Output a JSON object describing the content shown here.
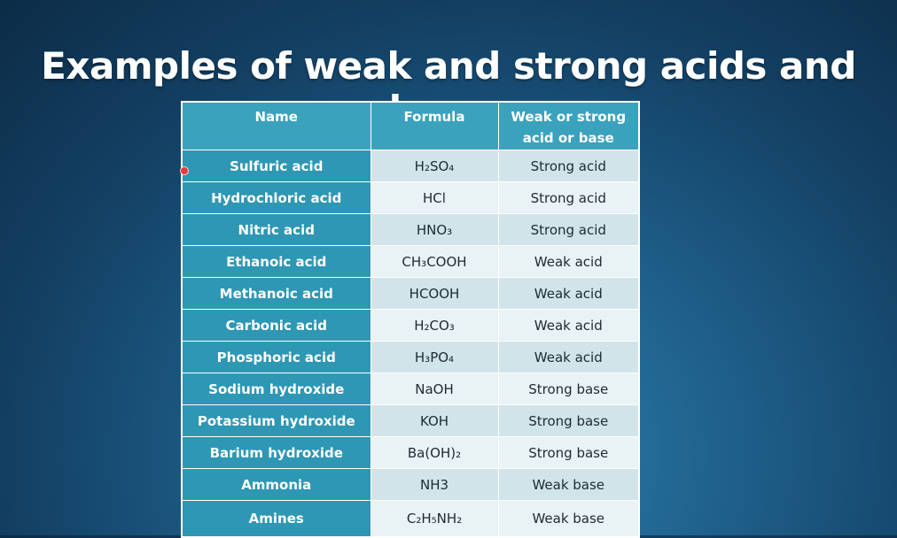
{
  "slide": {
    "title": "Examples of weak and strong acids and bases"
  },
  "table": {
    "headers": [
      "Name",
      "Formula",
      "Weak or strong acid or base"
    ],
    "rows": [
      {
        "name": "Sulfuric acid",
        "formula": "H₂SO₄",
        "type": "Strong acid"
      },
      {
        "name": "Hydrochloric acid",
        "formula": "HCl",
        "type": "Strong acid"
      },
      {
        "name": "Nitric acid",
        "formula": "HNO₃",
        "type": "Strong acid"
      },
      {
        "name": "Ethanoic acid",
        "formula": "CH₃COOH",
        "type": "Weak acid"
      },
      {
        "name": "Methanoic acid",
        "formula": "HCOOH",
        "type": "Weak acid"
      },
      {
        "name": "Carbonic acid",
        "formula": "H₂CO₃",
        "type": "Weak acid"
      },
      {
        "name": "Phosphoric acid",
        "formula": "H₃PO₄",
        "type": "Weak acid"
      },
      {
        "name": "Sodium hydroxide",
        "formula": "NaOH",
        "type": "Strong base"
      },
      {
        "name": "Potassium hydroxide",
        "formula": "KOH",
        "type": "Strong base"
      },
      {
        "name": "Barium hydroxide",
        "formula": "Ba(OH)₂",
        "type": "Strong base"
      },
      {
        "name": "Ammonia",
        "formula": "NH3",
        "type": "Weak base"
      },
      {
        "name": "Amines",
        "formula": "C₂H₅NH₂",
        "type": "Weak base"
      }
    ]
  },
  "colors": {
    "header_bg": "#3aa2bd",
    "name_col_bg": "#2d97b4",
    "row_light": "#e9f2f5",
    "row_dark": "#d1e4ea",
    "pointer": "#e53b3b"
  }
}
